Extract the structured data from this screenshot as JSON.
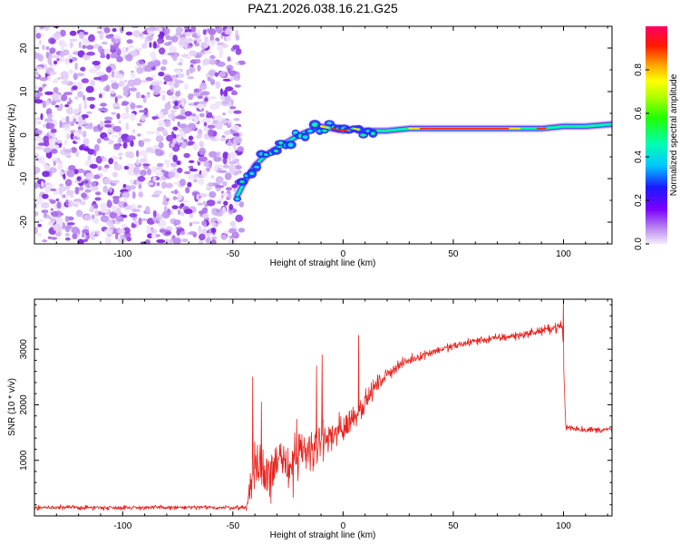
{
  "title": "PAZ1.2026.038.16.21.G25",
  "chart_data": [
    {
      "type": "heatmap",
      "name": "spectrogram",
      "xlabel": "Height of straight line (km)",
      "ylabel": "Frequency (Hz)",
      "xlim": [
        -140,
        122
      ],
      "ylim": [
        -25,
        25
      ],
      "xticks": [
        -100,
        -50,
        0,
        50,
        100
      ],
      "xtick_labels": [
        "-100",
        "-50",
        "0",
        "50",
        "100"
      ],
      "yticks": [
        -20,
        -10,
        0,
        10,
        20
      ],
      "ytick_labels": [
        "-20",
        "-10",
        "0",
        "10",
        "20"
      ],
      "ridge": {
        "x": [
          -48,
          -45,
          -40,
          -35,
          -30,
          -25,
          -20,
          -15,
          -10,
          -5,
          0,
          5,
          10,
          20,
          30,
          40,
          50,
          60,
          70,
          80,
          90,
          100,
          110,
          122
        ],
        "y": [
          -14,
          -11,
          -7,
          -4.5,
          -3,
          -1.5,
          0,
          1,
          2,
          1.5,
          1,
          1.5,
          1,
          1,
          1.5,
          1.5,
          1.5,
          1.5,
          1.5,
          1.5,
          1.5,
          2,
          2,
          2.5
        ]
      },
      "noise_region_x": [
        -140,
        -46
      ],
      "colorbar": {
        "label": "Normalized spectral amplitude",
        "range": [
          0,
          1
        ],
        "ticks": [
          0.0,
          0.2,
          0.4,
          0.6,
          0.8
        ],
        "tick_labels": [
          "0.0",
          "0.2",
          "0.4",
          "0.6",
          "0.8"
        ]
      }
    },
    {
      "type": "line",
      "name": "snr",
      "xlabel": "Height of straight line (km)",
      "ylabel": "SNR (10 * v/v)",
      "xlim": [
        -140,
        122
      ],
      "ylim": [
        0,
        3900
      ],
      "xticks": [
        -100,
        -50,
        0,
        50,
        100
      ],
      "xtick_labels": [
        "-100",
        "-50",
        "0",
        "50",
        "100"
      ],
      "yticks": [
        1000,
        2000,
        3000
      ],
      "ytick_labels": [
        "1000",
        "2000",
        "3000"
      ],
      "color": "#e8231e",
      "envelope_x": [
        -140,
        -44,
        -42,
        -40,
        -35,
        -30,
        -25,
        -20,
        -15,
        -10,
        -5,
        0,
        5,
        10,
        15,
        20,
        25,
        30,
        40,
        50,
        60,
        70,
        80,
        90,
        95,
        99.5,
        101,
        110,
        122
      ],
      "envelope_mean": [
        150,
        150,
        500,
        900,
        800,
        950,
        900,
        1100,
        1200,
        1350,
        1450,
        1550,
        1800,
        2050,
        2350,
        2550,
        2700,
        2800,
        2950,
        3050,
        3150,
        3200,
        3250,
        3330,
        3380,
        3420,
        1600,
        1550,
        1550
      ],
      "envelope_amp": [
        60,
        60,
        350,
        700,
        600,
        650,
        600,
        650,
        550,
        500,
        450,
        400,
        350,
        280,
        220,
        180,
        140,
        120,
        110,
        110,
        110,
        110,
        110,
        110,
        120,
        150,
        120,
        80,
        80
      ],
      "spikes": [
        {
          "x": -41,
          "y": 2500
        },
        {
          "x": -37,
          "y": 2050
        },
        {
          "x": -12,
          "y": 2700
        },
        {
          "x": -9.5,
          "y": 2900
        },
        {
          "x": 7,
          "y": 3250
        },
        {
          "x": 100,
          "y": 3900
        }
      ]
    }
  ]
}
